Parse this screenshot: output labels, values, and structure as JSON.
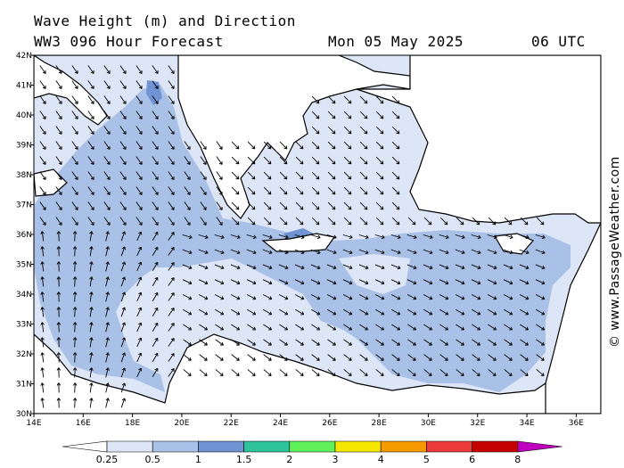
{
  "header": {
    "title": "Wave Height (m) and Direction",
    "subtitle": "WW3 096 Hour Forecast",
    "date": "Mon 05 May 2025",
    "time": "06 UTC"
  },
  "credit": "© www.PassageWeather.com",
  "map": {
    "lon_range": [
      14,
      37
    ],
    "lat_range": [
      30,
      42
    ],
    "lon_ticks": [
      "14E",
      "16E",
      "18E",
      "20E",
      "22E",
      "24E",
      "26E",
      "28E",
      "30E",
      "32E",
      "34E",
      "36E"
    ],
    "lat_ticks": [
      "30N",
      "31N",
      "32N",
      "33N",
      "34N",
      "35N",
      "36N",
      "37N",
      "38N",
      "39N",
      "40N",
      "41N",
      "42N"
    ],
    "arrow_direction": "north-west to south-east flow across the central and eastern Mediterranean",
    "colors": {
      "sea_low": "#dde6f6",
      "sea_mid": "#a9c1e6",
      "sea_high": "#6f93d3",
      "land": "#ffffff",
      "coast": "#000000"
    }
  },
  "legend": {
    "labels": [
      "0.25",
      "0.5",
      "1",
      "1.5",
      "2",
      "3",
      "4",
      "5",
      "6",
      "8"
    ],
    "colors": [
      "#dde6f6",
      "#a9c1e6",
      "#6f93d3",
      "#2ec39b",
      "#5ff05a",
      "#f6e700",
      "#f59a00",
      "#ec3a3a",
      "#c50000",
      "#c000c0"
    ]
  }
}
